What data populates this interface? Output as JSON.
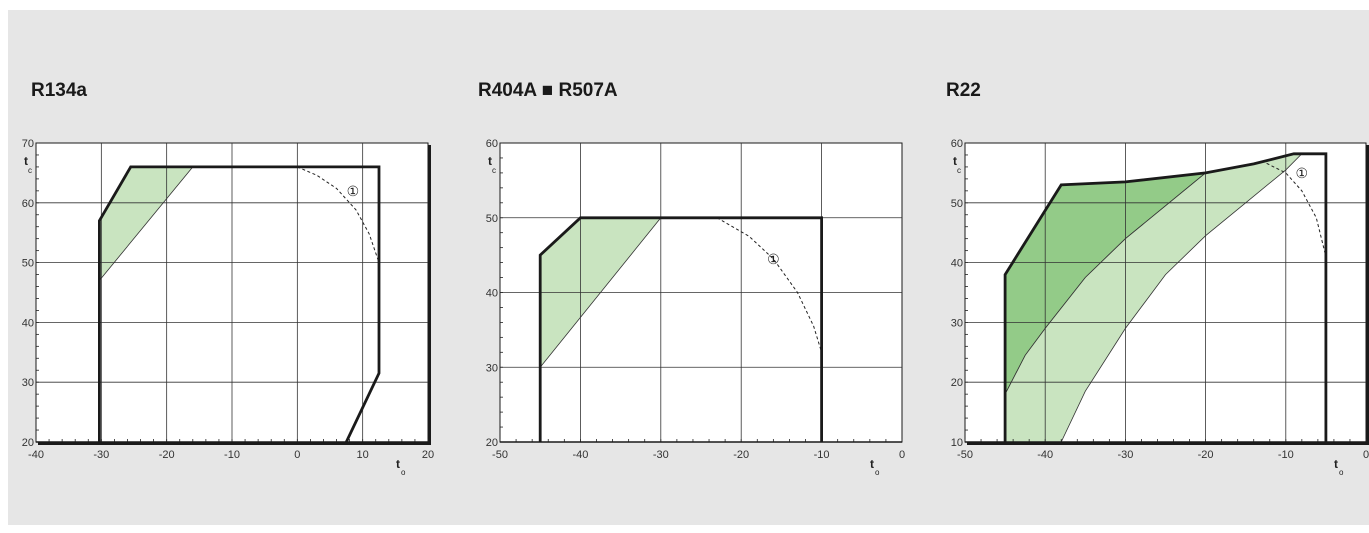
{
  "chart_data": [
    {
      "type": "area",
      "title": "R134a",
      "xlabel_main": "t",
      "xlabel_sub": "o",
      "ylabel_main": "t",
      "ylabel_sub": "c",
      "xlim": [
        -40,
        20
      ],
      "ylim": [
        20,
        70
      ],
      "xticks": [
        -40,
        -30,
        -20,
        -10,
        0,
        10,
        20
      ],
      "yticks": [
        20,
        30,
        40,
        50,
        60,
        70
      ],
      "grid": true,
      "envelope": [
        [
          -30.3,
          20
        ],
        [
          -30.3,
          57
        ],
        [
          -25.5,
          66
        ],
        [
          12.5,
          66
        ],
        [
          12.5,
          31.5
        ],
        [
          7.5,
          20
        ]
      ],
      "regions": [
        {
          "color": "#c9e4c0",
          "points": [
            [
              -30.3,
              57
            ],
            [
              -25.5,
              66
            ],
            [
              -16,
              66
            ],
            [
              -30.3,
              47
            ]
          ]
        }
      ],
      "dashed_curve": [
        [
          0,
          66
        ],
        [
          3,
          64.6
        ],
        [
          6,
          62.4
        ],
        [
          9,
          58.8
        ],
        [
          11,
          54.8
        ],
        [
          12.5,
          50
        ]
      ],
      "marker": {
        "label": "①",
        "x": 8.5,
        "y": 62
      }
    },
    {
      "type": "area",
      "title": "R404A ■ R507A",
      "xlabel_main": "t",
      "xlabel_sub": "o",
      "ylabel_main": "t",
      "ylabel_sub": "c",
      "xlim": [
        -50,
        0
      ],
      "ylim": [
        20,
        60
      ],
      "xticks": [
        -50,
        -40,
        -30,
        -20,
        -10,
        0
      ],
      "yticks": [
        20,
        30,
        40,
        50,
        60
      ],
      "grid": true,
      "envelope": [
        [
          -45,
          20
        ],
        [
          -45,
          45
        ],
        [
          -40,
          50
        ],
        [
          -10,
          50
        ],
        [
          -10,
          20
        ]
      ],
      "regions": [
        {
          "color": "#c9e4c0",
          "points": [
            [
              -45,
              45
            ],
            [
              -40,
              50
            ],
            [
              -30,
              50
            ],
            [
              -45,
              30
            ]
          ]
        }
      ],
      "dashed_curve": [
        [
          -23,
          50
        ],
        [
          -19,
          47.5
        ],
        [
          -16,
          44.5
        ],
        [
          -13,
          40
        ],
        [
          -11,
          35.5
        ],
        [
          -10,
          32
        ]
      ],
      "marker": {
        "label": "①",
        "x": -16,
        "y": 44.5
      }
    },
    {
      "type": "area",
      "title": "R22",
      "xlabel_main": "t",
      "xlabel_sub": "o",
      "ylabel_main": "t",
      "ylabel_sub": "c",
      "xlim": [
        -50,
        0
      ],
      "ylim": [
        10,
        60
      ],
      "xticks": [
        -50,
        -40,
        -30,
        -20,
        -10,
        0
      ],
      "yticks": [
        10,
        20,
        30,
        40,
        50,
        60
      ],
      "grid": true,
      "envelope": [
        [
          -45,
          10
        ],
        [
          -45,
          38
        ],
        [
          -38,
          53
        ],
        [
          -30,
          53.5
        ],
        [
          -20,
          55
        ],
        [
          -14,
          56.5
        ],
        [
          -9,
          58.2
        ],
        [
          -5,
          58.2
        ],
        [
          -5,
          10
        ]
      ],
      "regions": [
        {
          "color": "#c9e4c0",
          "points": [
            [
              -45,
              10
            ],
            [
              -45,
              18
            ],
            [
              -40,
              26
            ],
            [
              -35,
              33
            ],
            [
              -30,
              39
            ],
            [
              -25,
              44.5
            ],
            [
              -20,
              49
            ],
            [
              -15,
              53
            ],
            [
              -10,
              56.5
            ],
            [
              -8,
              58.2
            ],
            [
              -9,
              58.2
            ],
            [
              -14,
              56.5
            ],
            [
              -20,
              55
            ],
            [
              -21,
              54.5
            ],
            [
              -25,
              49.5
            ],
            [
              -30,
              42.5
            ],
            [
              -35,
              33
            ],
            [
              -38,
              25
            ],
            [
              -40,
              19
            ],
            [
              -41,
              15
            ],
            [
              -42,
              11.5
            ],
            [
              -43,
              10
            ]
          ]
        },
        {
          "color": "#93cb88",
          "points": [
            [
              -45,
              18
            ],
            [
              -45,
              38
            ],
            [
              -38,
              53
            ],
            [
              -30,
              53.5
            ],
            [
              -20,
              55
            ],
            [
              -25,
              49.5
            ],
            [
              -30,
              44
            ],
            [
              -35,
              37.5
            ],
            [
              -40,
              29
            ],
            [
              -42.5,
              24.5
            ]
          ]
        },
        {
          "color": "#c9e4c0",
          "points": [
            [
              -45,
              10
            ],
            [
              -45,
              18
            ],
            [
              -42.5,
              24.5
            ],
            [
              -40,
              29
            ],
            [
              -35,
              37.5
            ],
            [
              -30,
              44
            ],
            [
              -25,
              49.5
            ],
            [
              -20,
              55
            ],
            [
              -14,
              56.5
            ],
            [
              -9,
              58.2
            ],
            [
              -8,
              58.2
            ],
            [
              -10,
              55.5
            ],
            [
              -15,
              50
            ],
            [
              -20,
              44.5
            ],
            [
              -25,
              38
            ],
            [
              -30,
              29
            ],
            [
              -35,
              18.5
            ],
            [
              -38,
              10
            ]
          ]
        }
      ],
      "dashed_curve": [
        [
          -13,
          57
        ],
        [
          -10,
          55
        ],
        [
          -8,
          52
        ],
        [
          -6.2,
          47.5
        ],
        [
          -5,
          41
        ]
      ],
      "marker": {
        "label": "①",
        "x": -8,
        "y": 55
      }
    }
  ]
}
